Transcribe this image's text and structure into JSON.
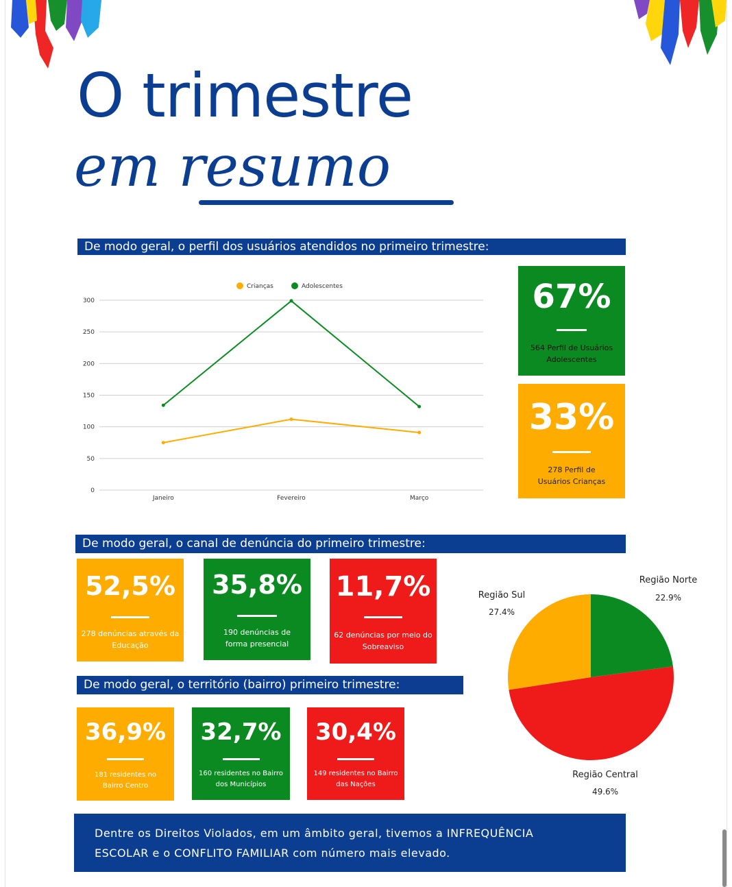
{
  "title": {
    "line1": "O trimestre",
    "line2": "em resumo"
  },
  "sections": {
    "perfil": "De modo geral, o perfil dos usuários atendidos no primeiro trimestre:",
    "canal": "De modo geral, o canal de denúncia do primeiro trimestre:",
    "territorio": "De modo geral, o território (bairro) primeiro trimestre:"
  },
  "perfil_boxes": [
    {
      "pct": "67%",
      "desc": "564 Perfil de Usuários Adolescentes",
      "color": "#0c8a22"
    },
    {
      "pct": "33%",
      "desc": "278 Perfil de Usuários Crianças",
      "color": "#ffac00"
    }
  ],
  "canal_boxes": [
    {
      "pct": "52,5%",
      "desc": "278 denúncias através da Educação",
      "color": "#ffac00"
    },
    {
      "pct": "35,8%",
      "desc": "190 denúncias de forma presencial",
      "color": "#0c8a22"
    },
    {
      "pct": "11,7%",
      "desc": "62 denúncias por meio do Sobreaviso",
      "color": "#ef1b1b"
    }
  ],
  "territorio_boxes": [
    {
      "pct": "36,9%",
      "desc": "181 residentes no Bairro Centro",
      "color": "#ffac00"
    },
    {
      "pct": "32,7%",
      "desc": "160 residentes no Bairro dos Municípios",
      "color": "#0c8a22"
    },
    {
      "pct": "30,4%",
      "desc": "149 residentes no Bairro das Nações",
      "color": "#ef1b1b"
    }
  ],
  "footer": {
    "line1": "Dentre os Direitos Violados, em um âmbito geral, tivemos a INFREQUÊNCIA",
    "line2": "ESCOLAR e o CONFLITO FAMILIAR com número mais elevado."
  },
  "chart_data": [
    {
      "type": "line",
      "categories": [
        "Janeiro",
        "Fevereiro",
        "Março"
      ],
      "series": [
        {
          "name": "Crianças",
          "values": [
            75,
            112,
            91
          ],
          "color": "#ffac00"
        },
        {
          "name": "Adolescentes",
          "values": [
            134,
            299,
            132
          ],
          "color": "#0c8a22"
        }
      ],
      "ylim": [
        0,
        300
      ],
      "yticks": [
        0,
        50,
        100,
        150,
        200,
        250,
        300
      ],
      "grid": true,
      "legend": "top"
    },
    {
      "type": "pie",
      "slices": [
        {
          "label": "Região Norte",
          "value": 22.9,
          "display": "22.9%",
          "color": "#0c8a22"
        },
        {
          "label": "Região Central",
          "value": 49.6,
          "display": "49.6%",
          "color": "#ef1b1b"
        },
        {
          "label": "Região Sul",
          "value": 27.4,
          "display": "27.4%",
          "color": "#ffac00"
        }
      ]
    }
  ]
}
